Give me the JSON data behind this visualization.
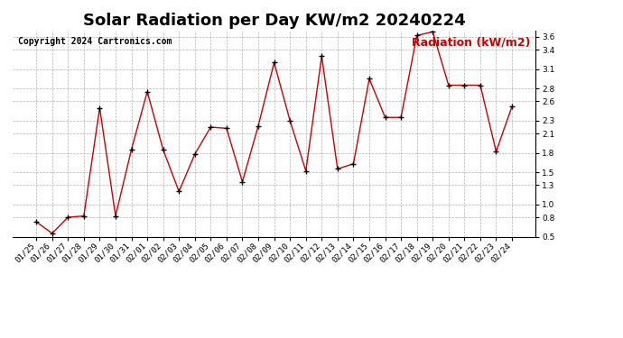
{
  "title": "Solar Radiation per Day KW/m2 20240224",
  "copyright_text": "Copyright 2024 Cartronics.com",
  "legend_label": "Radiation (kW/m2)",
  "dates": [
    "01/25",
    "01/26",
    "01/27",
    "01/28",
    "01/29",
    "01/30",
    "01/31",
    "02/01",
    "02/02",
    "02/03",
    "02/04",
    "02/05",
    "02/06",
    "02/07",
    "02/08",
    "02/09",
    "02/10",
    "02/11",
    "02/12",
    "02/13",
    "02/14",
    "02/15",
    "02/16",
    "02/17",
    "02/18",
    "02/19",
    "02/20",
    "02/21",
    "02/22",
    "02/23",
    "02/24"
  ],
  "values": [
    0.73,
    0.55,
    0.8,
    0.82,
    2.5,
    0.82,
    1.85,
    2.75,
    1.85,
    1.2,
    1.78,
    2.2,
    2.18,
    1.35,
    2.22,
    3.2,
    2.3,
    1.52,
    3.3,
    1.55,
    1.63,
    2.95,
    2.35,
    2.35,
    3.62,
    3.68,
    2.85,
    2.85,
    2.85,
    1.82,
    2.52
  ],
  "line_color": "#cc0000",
  "marker_color": "#000000",
  "background_color": "#ffffff",
  "grid_color": "#aaaaaa",
  "ylim": [
    0.5,
    3.7
  ],
  "yticks": [
    0.5,
    0.8,
    1.0,
    1.3,
    1.5,
    1.8,
    2.1,
    2.3,
    2.6,
    2.8,
    3.1,
    3.4,
    3.6
  ],
  "title_fontsize": 13,
  "copyright_fontsize": 7,
  "legend_fontsize": 9,
  "tick_fontsize": 6.5
}
